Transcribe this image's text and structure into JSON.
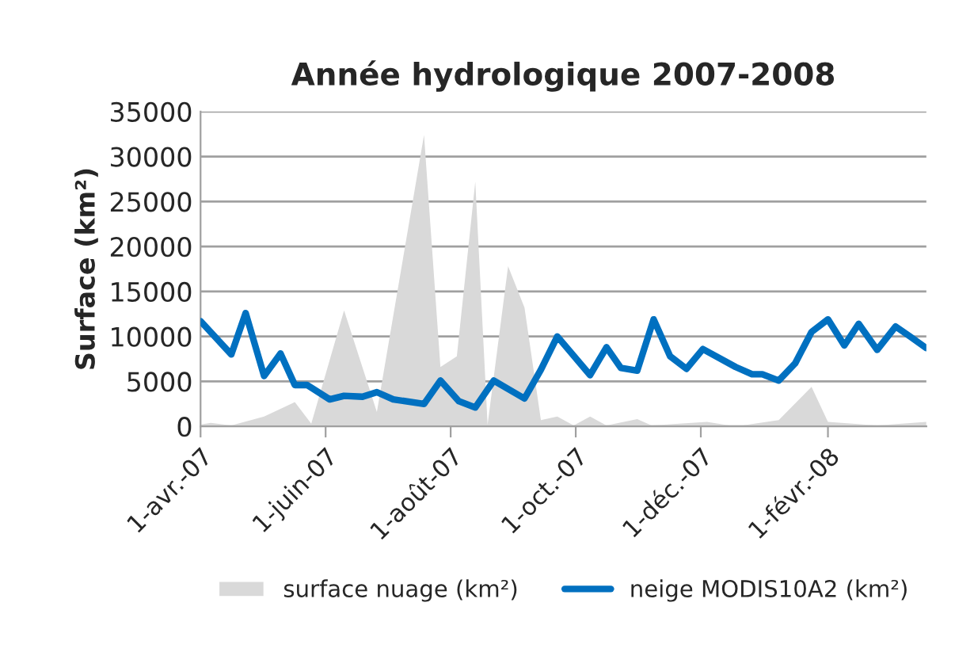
{
  "chart_data": {
    "type": "line",
    "title": "Année hydrologique 2007-2008",
    "ylabel": "Surface (km²)",
    "xlim": [
      "2007-04-01",
      "2008-03-20"
    ],
    "xticks": [
      {
        "value": "2007-04-01",
        "label": "1-avr.-07"
      },
      {
        "value": "2007-06-01",
        "label": "1-juin-07"
      },
      {
        "value": "2007-08-01",
        "label": "1-août-07"
      },
      {
        "value": "2007-10-01",
        "label": "1-oct.-07"
      },
      {
        "value": "2007-12-01",
        "label": "1-déc.-07"
      },
      {
        "value": "2008-02-01",
        "label": "1-févr.-08"
      }
    ],
    "ylim": [
      0,
      35000
    ],
    "yticks": [
      0,
      5000,
      10000,
      15000,
      20000,
      25000,
      30000,
      35000
    ],
    "grid": "y",
    "legend": "bottom",
    "series": [
      {
        "name": "surface nuage (km²)",
        "type": "area",
        "color": "#d9d9d9",
        "x": [
          "2007-04-01",
          "2007-04-06",
          "2007-04-16",
          "2007-05-02",
          "2007-05-17",
          "2007-05-25",
          "2007-06-10",
          "2007-06-26",
          "2007-07-19",
          "2007-07-27",
          "2007-08-04",
          "2007-08-13",
          "2007-08-19",
          "2007-08-29",
          "2007-09-06",
          "2007-09-14",
          "2007-09-22",
          "2007-09-30",
          "2007-10-08",
          "2007-10-16",
          "2007-10-31",
          "2007-11-07",
          "2007-12-04",
          "2007-12-18",
          "2008-01-08",
          "2008-01-24",
          "2008-02-01",
          "2008-02-25",
          "2008-03-20"
        ],
        "values": [
          200,
          400,
          100,
          1100,
          2700,
          300,
          12900,
          1600,
          32400,
          6600,
          7800,
          27200,
          200,
          17800,
          13200,
          700,
          1100,
          100,
          1100,
          100,
          800,
          100,
          500,
          0,
          700,
          4400,
          500,
          100,
          500
        ]
      },
      {
        "name": "neige MODIS10A2 (km²)",
        "color": "#0070c0",
        "x": [
          "2007-04-01",
          "2007-04-16",
          "2007-04-23",
          "2007-05-02",
          "2007-05-10",
          "2007-05-17",
          "2007-05-23",
          "2007-06-03",
          "2007-06-10",
          "2007-06-19",
          "2007-06-26",
          "2007-07-04",
          "2007-07-19",
          "2007-07-27",
          "2007-08-05",
          "2007-08-13",
          "2007-08-22",
          "2007-09-06",
          "2007-09-14",
          "2007-09-22",
          "2007-10-08",
          "2007-10-16",
          "2007-10-23",
          "2007-10-31",
          "2007-11-08",
          "2007-11-16",
          "2007-11-24",
          "2007-12-02",
          "2007-12-18",
          "2007-12-26",
          "2007-12-31",
          "2008-01-08",
          "2008-01-16",
          "2008-01-24",
          "2008-02-01",
          "2008-02-09",
          "2008-02-16",
          "2008-02-25",
          "2008-03-05",
          "2008-03-12",
          "2008-03-20"
        ],
        "values": [
          11700,
          8000,
          12600,
          5600,
          8100,
          4600,
          4600,
          3000,
          3400,
          3300,
          3800,
          3000,
          2500,
          5100,
          2800,
          2100,
          5100,
          3100,
          6300,
          10000,
          5700,
          8800,
          6500,
          6200,
          11900,
          7800,
          6400,
          8600,
          6600,
          5800,
          5800,
          5100,
          7000,
          10500,
          11900,
          9000,
          11400,
          8500,
          11100,
          10000,
          8700
        ]
      }
    ]
  }
}
